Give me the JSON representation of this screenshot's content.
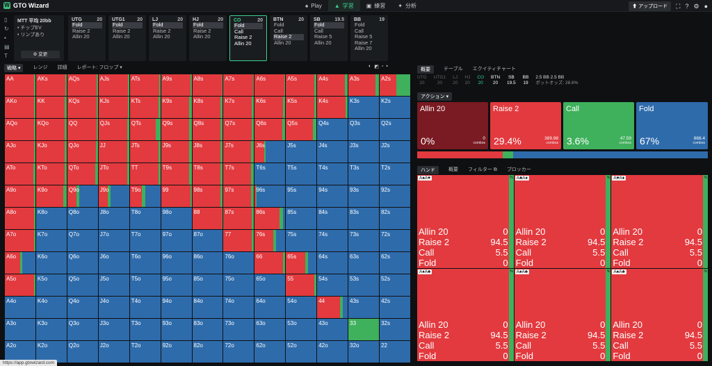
{
  "app": {
    "title": "GTO Wizard",
    "logo_letter": "W",
    "upload": "⬆ アップロード"
  },
  "nav": [
    {
      "label": "Play",
      "icon": "♠"
    },
    {
      "label": "学習",
      "icon": "▲"
    },
    {
      "label": "練習",
      "icon": "▣"
    },
    {
      "label": "分析",
      "icon": "✦"
    }
  ],
  "mtt": {
    "title": "MTT 平均 20bb",
    "line1": "• チップEV",
    "line2": "• リンプあり",
    "change": "⚙ 変更"
  },
  "positions": [
    {
      "name": "UTG",
      "stack": "20",
      "actions": [
        "Fold",
        "Raise 2",
        "Allin 20"
      ],
      "selected": 0,
      "active": false
    },
    {
      "name": "UTG1",
      "stack": "20",
      "actions": [
        "Fold",
        "Raise 2",
        "Allin 20"
      ],
      "selected": 0,
      "active": false
    },
    {
      "name": "LJ",
      "stack": "20",
      "actions": [
        "Fold",
        "Raise 2",
        "Allin 20"
      ],
      "selected": 0,
      "active": false
    },
    {
      "name": "HJ",
      "stack": "20",
      "actions": [
        "Fold",
        "Raise 2",
        "Allin 20"
      ],
      "selected": 0,
      "active": false
    },
    {
      "name": "CO",
      "stack": "20",
      "actions": [
        "Fold",
        "Call",
        "Raise 2",
        "Allin 20"
      ],
      "selected": 0,
      "active": true
    },
    {
      "name": "BTN",
      "stack": "20",
      "actions": [
        "Fold",
        "Call",
        "Raise 2",
        "Allin 20"
      ],
      "selected": 2,
      "active": false
    },
    {
      "name": "SB",
      "stack": "19.5",
      "actions": [
        "Fold",
        "Call",
        "Raise 5",
        "Allin 20"
      ],
      "selected": 0,
      "active": false
    },
    {
      "name": "BB",
      "stack": "19",
      "actions": [
        "Fold",
        "Call",
        "Raise 5",
        "Raise 7",
        "Allin 20"
      ],
      "selected": -1,
      "active": false
    }
  ],
  "subbar": {
    "strategy": "戦略 ▾",
    "range": "レンジ",
    "detail": "詳細",
    "report": "レポート: フロップ ▾"
  },
  "gridtools": [
    "◐",
    "◩",
    "▫",
    "▪"
  ],
  "colors": {
    "allin": "#8b1c24",
    "raise": "#e23a3f",
    "call": "#3fb05c",
    "fold": "#2e6bab"
  },
  "hands": [
    [
      "AA",
      "AKs",
      "AQs",
      "AJs",
      "ATs",
      "A9s",
      "A8s",
      "A7s",
      "A6s",
      "A5s",
      "A4s",
      "A3s",
      "A2s"
    ],
    [
      "AKo",
      "KK",
      "KQs",
      "KJs",
      "KTs",
      "K9s",
      "K8s",
      "K7s",
      "K6s",
      "K5s",
      "K4s",
      "K3s",
      "K2s"
    ],
    [
      "AQo",
      "KQo",
      "QQ",
      "QJs",
      "QTs",
      "Q9s",
      "Q8s",
      "Q7s",
      "Q6s",
      "Q5s",
      "Q4s",
      "Q3s",
      "Q2s"
    ],
    [
      "AJo",
      "KJo",
      "QJo",
      "JJ",
      "JTs",
      "J9s",
      "J8s",
      "J7s",
      "J6s",
      "J5s",
      "J4s",
      "J3s",
      "J2s"
    ],
    [
      "ATo",
      "KTo",
      "QTo",
      "JTo",
      "TT",
      "T9s",
      "T8s",
      "T7s",
      "T6s",
      "T5s",
      "T4s",
      "T3s",
      "T2s"
    ],
    [
      "A9o",
      "K9o",
      "Q9o",
      "J9o",
      "T9o",
      "99",
      "98s",
      "97s",
      "96s",
      "95s",
      "94s",
      "93s",
      "92s"
    ],
    [
      "A8o",
      "K8o",
      "Q8o",
      "J8o",
      "T8o",
      "98o",
      "88",
      "87s",
      "86s",
      "85s",
      "84s",
      "83s",
      "82s"
    ],
    [
      "A7o",
      "K7o",
      "Q7o",
      "J7o",
      "T7o",
      "97o",
      "87o",
      "77",
      "76s",
      "75s",
      "74s",
      "73s",
      "72s"
    ],
    [
      "A6o",
      "K6o",
      "Q6o",
      "J6o",
      "T6o",
      "96o",
      "86o",
      "76o",
      "66",
      "65s",
      "64s",
      "63s",
      "62s"
    ],
    [
      "A5o",
      "K5o",
      "Q5o",
      "J5o",
      "T5o",
      "95o",
      "85o",
      "75o",
      "65o",
      "55",
      "54s",
      "53s",
      "52s"
    ],
    [
      "A4o",
      "K4o",
      "Q4o",
      "J4o",
      "T4o",
      "94o",
      "84o",
      "74o",
      "64o",
      "54o",
      "44",
      "43s",
      "42s"
    ],
    [
      "A3o",
      "K3o",
      "Q3o",
      "J3o",
      "T3o",
      "93o",
      "83o",
      "73o",
      "63o",
      "53o",
      "43o",
      "33",
      "32s"
    ],
    [
      "A2o",
      "K2o",
      "Q2o",
      "J2o",
      "T2o",
      "92o",
      "82o",
      "72o",
      "62o",
      "52o",
      "42o",
      "32o",
      "22"
    ]
  ],
  "freqs": [
    [
      [
        0,
        94.5,
        5.5
      ],
      [
        0,
        95,
        5
      ],
      [
        0,
        96,
        4
      ],
      [
        0,
        96,
        4
      ],
      [
        0,
        96,
        4
      ],
      [
        0,
        96,
        4
      ],
      [
        0,
        96,
        4
      ],
      [
        0,
        96,
        4
      ],
      [
        0,
        96,
        4
      ],
      [
        0,
        92,
        8
      ],
      [
        0,
        90,
        10
      ],
      [
        0,
        88,
        12
      ],
      [
        0,
        55,
        45
      ]
    ],
    [
      [
        0,
        95,
        5
      ],
      [
        0,
        94,
        6
      ],
      [
        0,
        96,
        4
      ],
      [
        0,
        96,
        4
      ],
      [
        0,
        93,
        7
      ],
      [
        0,
        93,
        7
      ],
      [
        0,
        93,
        7
      ],
      [
        0,
        93,
        7
      ],
      [
        0,
        93,
        7
      ],
      [
        0,
        93,
        7
      ],
      [
        0,
        93,
        7
      ],
      [
        0,
        0,
        0
      ],
      [
        0,
        0,
        0
      ]
    ],
    [
      [
        0,
        95,
        5
      ],
      [
        0,
        93,
        7
      ],
      [
        0,
        96,
        4
      ],
      [
        0,
        93,
        7
      ],
      [
        0,
        85,
        15
      ],
      [
        0,
        92,
        8
      ],
      [
        0,
        92,
        8
      ],
      [
        0,
        93,
        7
      ],
      [
        0,
        90,
        10
      ],
      [
        0,
        88,
        12
      ],
      [
        0,
        0,
        0
      ],
      [
        0,
        0,
        0
      ],
      [
        0,
        0,
        0
      ]
    ],
    [
      [
        0,
        96,
        4
      ],
      [
        0,
        94,
        6
      ],
      [
        0,
        94,
        6
      ],
      [
        0,
        93,
        7
      ],
      [
        0,
        93,
        7
      ],
      [
        0,
        92,
        8
      ],
      [
        0,
        92,
        8
      ],
      [
        0,
        90,
        10
      ],
      [
        0,
        30,
        6
      ],
      [
        0,
        0,
        0
      ],
      [
        0,
        0,
        0
      ],
      [
        0,
        0,
        0
      ],
      [
        0,
        0,
        0
      ]
    ],
    [
      [
        0,
        93,
        7
      ],
      [
        0,
        94,
        6
      ],
      [
        0,
        92,
        8
      ],
      [
        0,
        93,
        7
      ],
      [
        0,
        93,
        7
      ],
      [
        0,
        93,
        7
      ],
      [
        0,
        92,
        8
      ],
      [
        0,
        90,
        10
      ],
      [
        0,
        0,
        0
      ],
      [
        0,
        0,
        0
      ],
      [
        0,
        0,
        0
      ],
      [
        0,
        0,
        0
      ],
      [
        0,
        0,
        0
      ]
    ],
    [
      [
        0,
        96,
        4
      ],
      [
        0,
        88,
        12
      ],
      [
        0,
        30,
        10
      ],
      [
        0,
        30,
        10
      ],
      [
        0,
        40,
        10
      ],
      [
        0,
        96,
        4
      ],
      [
        0,
        93,
        7
      ],
      [
        0,
        90,
        10
      ],
      [
        0,
        3,
        3
      ],
      [
        0,
        0,
        0
      ],
      [
        0,
        0,
        0
      ],
      [
        0,
        0,
        0
      ],
      [
        0,
        0,
        0
      ]
    ],
    [
      [
        0,
        96,
        4
      ],
      [
        0,
        0,
        0
      ],
      [
        0,
        0,
        0
      ],
      [
        0,
        0,
        0
      ],
      [
        0,
        0,
        0
      ],
      [
        0,
        0,
        0
      ],
      [
        0,
        96,
        4
      ],
      [
        0,
        92,
        8
      ],
      [
        0,
        82,
        10
      ],
      [
        0,
        0,
        0
      ],
      [
        0,
        0,
        0
      ],
      [
        0,
        0,
        0
      ],
      [
        0,
        0,
        0
      ]
    ],
    [
      [
        0,
        96,
        4
      ],
      [
        0,
        0,
        0
      ],
      [
        0,
        0,
        0
      ],
      [
        0,
        0,
        0
      ],
      [
        0,
        0,
        0
      ],
      [
        0,
        0,
        0
      ],
      [
        0,
        0,
        0
      ],
      [
        0,
        93,
        7
      ],
      [
        0,
        60,
        10
      ],
      [
        0,
        0,
        0
      ],
      [
        0,
        0,
        0
      ],
      [
        0,
        0,
        0
      ],
      [
        0,
        0,
        0
      ]
    ],
    [
      [
        0,
        50,
        6
      ],
      [
        0,
        0,
        0
      ],
      [
        0,
        0,
        0
      ],
      [
        0,
        0,
        0
      ],
      [
        0,
        0,
        0
      ],
      [
        0,
        0,
        0
      ],
      [
        0,
        0,
        0
      ],
      [
        0,
        0,
        0
      ],
      [
        0,
        93,
        7
      ],
      [
        0,
        62,
        10
      ],
      [
        0,
        0,
        0
      ],
      [
        0,
        0,
        0
      ],
      [
        0,
        0,
        0
      ]
    ],
    [
      [
        0,
        96,
        4
      ],
      [
        0,
        0,
        0
      ],
      [
        0,
        0,
        0
      ],
      [
        0,
        0,
        0
      ],
      [
        0,
        0,
        0
      ],
      [
        0,
        0,
        0
      ],
      [
        0,
        0,
        0
      ],
      [
        0,
        0,
        0
      ],
      [
        0,
        0,
        0
      ],
      [
        0,
        93,
        7
      ],
      [
        0,
        0,
        0
      ],
      [
        0,
        0,
        0
      ],
      [
        0,
        0,
        0
      ]
    ],
    [
      [
        0,
        0,
        0
      ],
      [
        0,
        0,
        0
      ],
      [
        0,
        0,
        0
      ],
      [
        0,
        0,
        0
      ],
      [
        0,
        0,
        0
      ],
      [
        0,
        0,
        0
      ],
      [
        0,
        0,
        0
      ],
      [
        0,
        0,
        0
      ],
      [
        0,
        0,
        0
      ],
      [
        0,
        0,
        0
      ],
      [
        0,
        75,
        8
      ],
      [
        0,
        0,
        0
      ],
      [
        0,
        0,
        0
      ]
    ],
    [
      [
        0,
        0,
        0
      ],
      [
        0,
        0,
        0
      ],
      [
        0,
        0,
        0
      ],
      [
        0,
        0,
        0
      ],
      [
        0,
        0,
        0
      ],
      [
        0,
        0,
        0
      ],
      [
        0,
        0,
        0
      ],
      [
        0,
        0,
        0
      ],
      [
        0,
        0,
        0
      ],
      [
        0,
        0,
        0
      ],
      [
        0,
        0,
        0
      ],
      [
        0,
        0,
        100
      ],
      [
        0,
        0,
        0
      ]
    ],
    [
      [
        0,
        0,
        0
      ],
      [
        0,
        0,
        0
      ],
      [
        0,
        0,
        0
      ],
      [
        0,
        0,
        0
      ],
      [
        0,
        0,
        0
      ],
      [
        0,
        0,
        0
      ],
      [
        0,
        0,
        0
      ],
      [
        0,
        0,
        0
      ],
      [
        0,
        0,
        0
      ],
      [
        0,
        0,
        0
      ],
      [
        0,
        0,
        0
      ],
      [
        0,
        0,
        0
      ],
      [
        0,
        0,
        0
      ]
    ]
  ],
  "rtabs": [
    "概要",
    "テーブル",
    "エクイティチャート"
  ],
  "posrow": [
    {
      "n": "UTG",
      "s": "20",
      "c": "dim"
    },
    {
      "n": "UTG1",
      "s": "20",
      "c": "dim"
    },
    {
      "n": "LJ",
      "s": "20",
      "c": "dim"
    },
    {
      "n": "HJ",
      "s": "20",
      "c": "dim"
    },
    {
      "n": "CO",
      "s": "20",
      "c": "cur"
    },
    {
      "n": "BTN",
      "s": "20",
      "c": "hi"
    },
    {
      "n": "SB",
      "s": "19.5",
      "c": "hi"
    },
    {
      "n": "BB",
      "s": "19",
      "c": "hi"
    }
  ],
  "pot": {
    "line1": "2.5 BB  2.5 BB",
    "line2": "ポットオッズ: 28.6%"
  },
  "action_dropdown": "アクション ▾",
  "actions": [
    {
      "name": "Allin 20",
      "pct": "0%",
      "combos": "0",
      "color": "#7a1a22"
    },
    {
      "name": "Raise 2",
      "pct": "29.4%",
      "combos": "389.98",
      "color": "#e23a3f"
    },
    {
      "name": "Call",
      "pct": "3.6%",
      "combos": "47.59",
      "color": "#3fb05c"
    },
    {
      "name": "Fold",
      "pct": "67%",
      "combos": "888.4",
      "color": "#2e6bab"
    }
  ],
  "combos_label": "combos",
  "freqbar": [
    0,
    29.4,
    3.6,
    67
  ],
  "htabs": [
    "ハンド",
    "概要",
    "フィルター ⧉",
    "ブロッカー"
  ],
  "hand_combos": [
    {
      "cards": "A♠A♥",
      "pct": "%"
    },
    {
      "cards": "A♣A♦",
      "pct": "%"
    },
    {
      "cards": "A♥A♦",
      "pct": "%"
    },
    {
      "cards": "A♦A♣",
      "pct": "%"
    },
    {
      "cards": "A♠A♣",
      "pct": "%"
    },
    {
      "cards": "A♠A♣",
      "pct": "%"
    }
  ],
  "hand_rows": [
    {
      "label": "Allin 20",
      "v": "0"
    },
    {
      "label": "Raise 2",
      "v": "94.5"
    },
    {
      "label": "Call",
      "v": "5.5"
    },
    {
      "label": "Fold",
      "v": "0"
    }
  ],
  "url": "https://app.gtowizard.com"
}
